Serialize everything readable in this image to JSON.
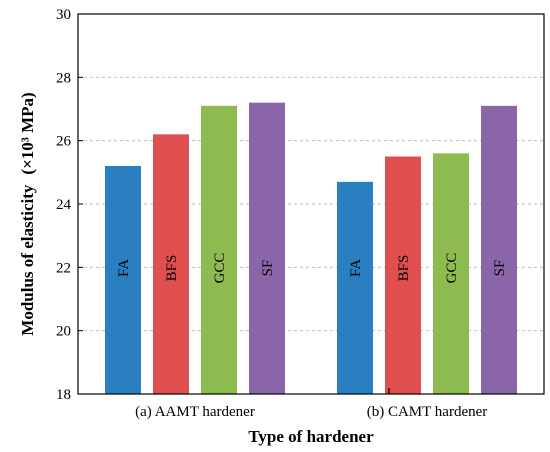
{
  "chart_data": {
    "type": "bar",
    "title": "",
    "xlabel": "Type  of hardener",
    "ylabel": "Modulus of elasticity",
    "ylabel_unit": "(×10³ MPa)",
    "ylim": [
      18,
      30
    ],
    "yticks": [
      "18",
      "20",
      "22",
      "24",
      "26",
      "28",
      "30"
    ],
    "grid": true,
    "groups": [
      {
        "label": "(a) AAMT hardener",
        "bars": [
          {
            "label": "FA",
            "value": 25.2,
            "color": "#2a7fc0"
          },
          {
            "label": "BFS",
            "value": 26.2,
            "color": "#e04f4f"
          },
          {
            "label": "GCC",
            "value": 27.1,
            "color": "#8dbb4f"
          },
          {
            "label": "SF",
            "value": 27.2,
            "color": "#8a65a8"
          }
        ]
      },
      {
        "label": "(b) CAMT hardener",
        "bars": [
          {
            "label": "FA",
            "value": 24.7,
            "color": "#2a7fc0"
          },
          {
            "label": "BFS",
            "value": 25.5,
            "color": "#e04f4f"
          },
          {
            "label": "GCC",
            "value": 25.6,
            "color": "#8dbb4f"
          },
          {
            "label": "SF",
            "value": 27.1,
            "color": "#8a65a8"
          }
        ]
      }
    ]
  }
}
